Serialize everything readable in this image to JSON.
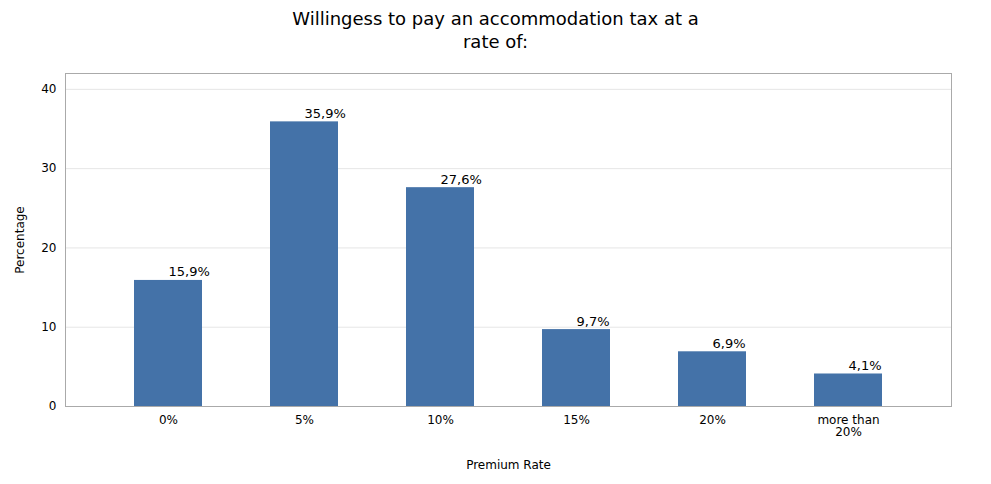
{
  "chart_data": {
    "type": "bar",
    "title": "Willingess to pay an accommodation tax at a\nrate of:",
    "categories": [
      "0%",
      "5%",
      "10%",
      "15%",
      "20%",
      "more than\n20%"
    ],
    "values": [
      15.9,
      35.9,
      27.6,
      9.7,
      6.9,
      4.1
    ],
    "value_labels": [
      "15,9%",
      "35,9%",
      "27,6%",
      "9,7%",
      "6,9%",
      "4,1%"
    ],
    "data_labels": true,
    "color": "#4472a8",
    "xlabel": "Premium Rate",
    "ylabel": "Percentage",
    "ylim": [
      0,
      42
    ],
    "yticks": [
      0,
      10,
      20,
      30,
      40
    ],
    "grid": true
  }
}
